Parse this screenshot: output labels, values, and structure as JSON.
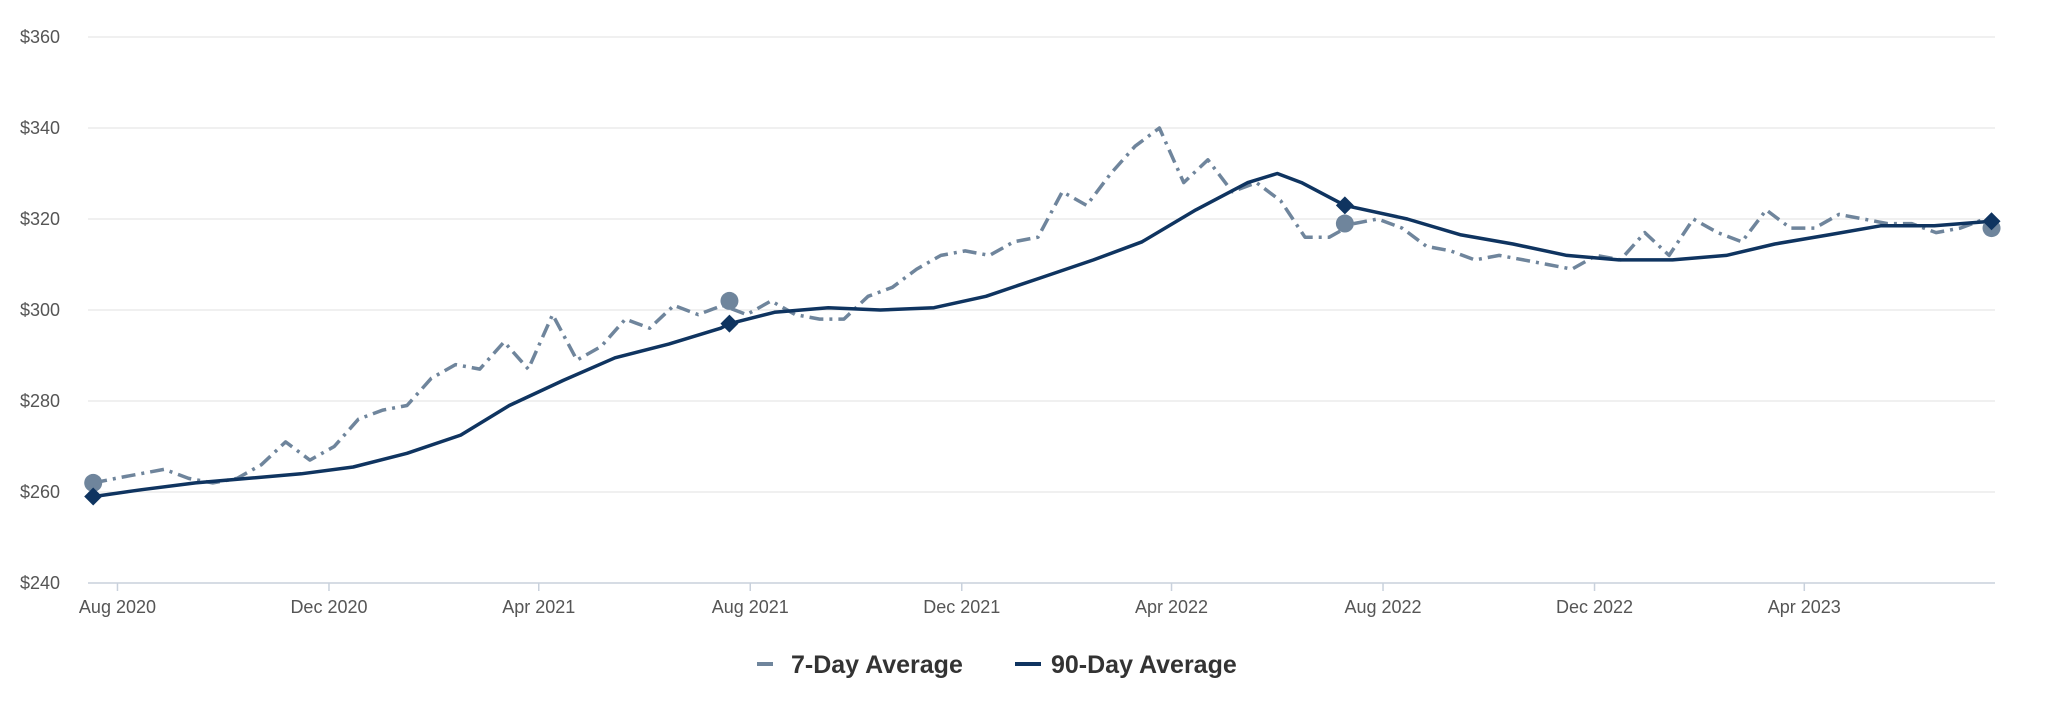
{
  "chart_data": {
    "type": "line",
    "title": "",
    "xlabel": "",
    "ylabel": "",
    "ylim": [
      240,
      360
    ],
    "y_ticks": [
      {
        "value": 240,
        "label": "$240"
      },
      {
        "value": 260,
        "label": "$260"
      },
      {
        "value": 280,
        "label": "$280"
      },
      {
        "value": 300,
        "label": "$300"
      },
      {
        "value": 320,
        "label": "$320"
      },
      {
        "value": 340,
        "label": "$340"
      },
      {
        "value": 360,
        "label": "$360"
      }
    ],
    "xlim": [
      "2020-07-15",
      "2023-07-20"
    ],
    "x_ticks": [
      {
        "value": "2020-08-01",
        "label": "Aug 2020"
      },
      {
        "value": "2020-12-01",
        "label": "Dec 2020"
      },
      {
        "value": "2021-04-01",
        "label": "Apr 2021"
      },
      {
        "value": "2021-08-01",
        "label": "Aug 2021"
      },
      {
        "value": "2021-12-01",
        "label": "Dec 2021"
      },
      {
        "value": "2022-04-01",
        "label": "Apr 2022"
      },
      {
        "value": "2022-08-01",
        "label": "Aug 2022"
      },
      {
        "value": "2022-12-01",
        "label": "Dec 2022"
      },
      {
        "value": "2023-04-01",
        "label": "Apr 2023"
      }
    ],
    "grid": "horizontal",
    "legend_position": "bottom-center",
    "series": [
      {
        "name": "7-Day Average",
        "color": "#6f859c",
        "style": "dash-dot",
        "marker": "circle",
        "x": [
          "2020-07-18",
          "2020-07-31",
          "2020-08-14",
          "2020-08-28",
          "2020-09-11",
          "2020-09-25",
          "2020-10-09",
          "2020-10-23",
          "2020-11-06",
          "2020-11-20",
          "2020-12-04",
          "2020-12-18",
          "2021-01-01",
          "2021-01-15",
          "2021-01-29",
          "2021-02-12",
          "2021-02-26",
          "2021-03-12",
          "2021-03-26",
          "2021-04-09",
          "2021-04-23",
          "2021-05-07",
          "2021-05-21",
          "2021-06-04",
          "2021-06-18",
          "2021-07-02",
          "2021-07-16",
          "2021-07-30",
          "2021-08-13",
          "2021-08-27",
          "2021-09-10",
          "2021-09-24",
          "2021-10-08",
          "2021-10-22",
          "2021-11-05",
          "2021-11-19",
          "2021-12-03",
          "2021-12-17",
          "2021-12-31",
          "2022-01-14",
          "2022-01-28",
          "2022-02-11",
          "2022-02-25",
          "2022-03-11",
          "2022-03-25",
          "2022-04-08",
          "2022-04-22",
          "2022-05-06",
          "2022-05-20",
          "2022-06-03",
          "2022-06-17",
          "2022-07-01",
          "2022-07-15",
          "2022-07-29",
          "2022-08-12",
          "2022-08-26",
          "2022-09-09",
          "2022-09-23",
          "2022-10-07",
          "2022-10-21",
          "2022-11-04",
          "2022-11-18",
          "2022-12-02",
          "2022-12-16",
          "2022-12-30",
          "2023-01-13",
          "2023-01-27",
          "2023-02-10",
          "2023-02-24",
          "2023-03-10",
          "2023-03-24",
          "2023-04-07",
          "2023-04-21",
          "2023-05-05",
          "2023-05-19",
          "2023-06-02",
          "2023-06-16",
          "2023-06-30",
          "2023-07-14",
          "2023-07-18"
        ],
        "y": [
          262,
          263,
          264,
          265,
          263,
          262,
          263,
          266,
          271,
          267,
          270,
          276,
          278,
          279,
          285,
          288,
          287,
          293,
          287,
          299,
          289,
          292,
          298,
          296,
          301,
          299,
          301,
          299,
          302,
          299,
          298,
          298,
          303,
          305,
          309,
          312,
          313,
          312,
          315,
          316,
          326,
          323,
          330,
          336,
          340,
          328,
          333,
          326,
          328,
          324,
          316,
          316,
          319,
          320,
          318,
          314,
          313,
          311,
          312,
          311,
          310,
          309,
          312,
          311,
          317,
          312,
          320,
          317,
          315,
          322,
          318,
          318,
          321,
          320,
          319,
          319,
          317,
          318,
          320,
          318
        ],
        "markers": [
          {
            "x": "2020-07-18",
            "y": 262
          },
          {
            "x": "2021-07-20",
            "y": 302
          },
          {
            "x": "2022-07-10",
            "y": 319
          },
          {
            "x": "2023-07-18",
            "y": 318
          }
        ]
      },
      {
        "name": "90-Day Average",
        "color": "#0f3460",
        "style": "solid",
        "marker": "diamond",
        "x": [
          "2020-07-18",
          "2020-08-15",
          "2020-09-15",
          "2020-10-15",
          "2020-11-15",
          "2020-12-15",
          "2021-01-15",
          "2021-02-15",
          "2021-03-15",
          "2021-04-15",
          "2021-05-15",
          "2021-06-15",
          "2021-07-15",
          "2021-07-20",
          "2021-08-15",
          "2021-09-15",
          "2021-10-15",
          "2021-11-15",
          "2021-12-15",
          "2022-01-15",
          "2022-02-15",
          "2022-03-15",
          "2022-04-15",
          "2022-05-15",
          "2022-06-01",
          "2022-06-15",
          "2022-07-10",
          "2022-08-15",
          "2022-09-15",
          "2022-10-15",
          "2022-11-15",
          "2022-12-15",
          "2023-01-15",
          "2023-02-15",
          "2023-03-15",
          "2023-04-15",
          "2023-05-15",
          "2023-06-15",
          "2023-07-18"
        ],
        "y": [
          259,
          260.5,
          262,
          263,
          264,
          265.5,
          268.5,
          272.5,
          279,
          284.5,
          289.5,
          292.5,
          296,
          297,
          299.5,
          300.5,
          300,
          300.5,
          303,
          307,
          311,
          315,
          322,
          328,
          330,
          328,
          323,
          320,
          316.5,
          314.5,
          312,
          311,
          311,
          312,
          314.5,
          316.5,
          318.5,
          318.5,
          319.5
        ],
        "markers": [
          {
            "x": "2020-07-18",
            "y": 259
          },
          {
            "x": "2021-07-20",
            "y": 297
          },
          {
            "x": "2022-07-10",
            "y": 323
          },
          {
            "x": "2023-07-18",
            "y": 319.5
          }
        ]
      }
    ]
  }
}
